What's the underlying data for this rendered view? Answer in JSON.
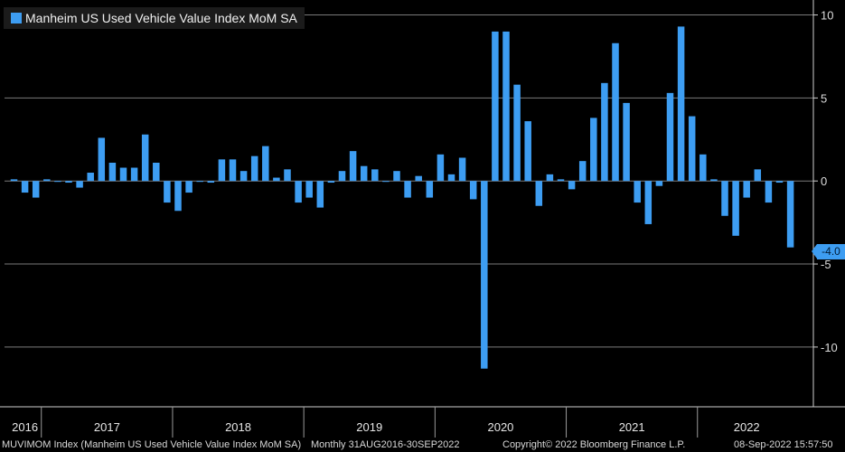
{
  "chart_data": {
    "type": "bar",
    "title": "Manheim US Used Vehicle Value Index MoM SA",
    "series": [
      {
        "name": "Manheim US Used Vehicle Value Index MoM SA",
        "color": "#3d9df2",
        "values": [
          0.1,
          -0.7,
          -1.0,
          0.1,
          0.0,
          -0.1,
          -0.4,
          0.5,
          2.6,
          1.1,
          0.8,
          0.8,
          2.8,
          1.1,
          -1.3,
          -1.8,
          -0.7,
          0.0,
          -0.1,
          1.3,
          1.3,
          0.6,
          1.5,
          2.1,
          0.2,
          0.7,
          -1.3,
          -1.0,
          -1.6,
          -0.1,
          0.6,
          1.8,
          0.9,
          0.7,
          0.0,
          0.6,
          -1.0,
          0.3,
          -1.0,
          1.6,
          0.4,
          1.4,
          -1.1,
          -11.3,
          9.0,
          9.0,
          5.8,
          3.6,
          -1.5,
          0.4,
          0.1,
          -0.5,
          1.2,
          3.8,
          5.9,
          8.3,
          4.7,
          -1.3,
          -2.6,
          -0.3,
          5.3,
          9.3,
          3.9,
          1.6,
          0.1,
          -2.1,
          -3.3,
          -1.0,
          0.7,
          -1.3,
          -0.1,
          -4.0
        ]
      }
    ],
    "x_start": "Oct 2016",
    "ylim": [
      -13.6,
      10.9
    ],
    "yticks": [
      10,
      5,
      0,
      -5,
      -10
    ],
    "ytick_labels": [
      "10",
      "5",
      "0",
      "-5",
      "-10"
    ],
    "year_labels": [
      {
        "label": "2016",
        "first_index": 0,
        "months": 3
      },
      {
        "label": "2017",
        "first_index": 3,
        "months": 12
      },
      {
        "label": "2018",
        "first_index": 15,
        "months": 12
      },
      {
        "label": "2019",
        "first_index": 27,
        "months": 12
      },
      {
        "label": "2020",
        "first_index": 39,
        "months": 12
      },
      {
        "label": "2021",
        "first_index": 51,
        "months": 12
      },
      {
        "label": "2022",
        "first_index": 63,
        "months": 9
      }
    ],
    "last_value_label": "-4.0",
    "legend": "top-left",
    "grid": true
  },
  "footer": {
    "security": "MUVIMOM Index (Manheim US Used Vehicle Value Index MoM SA)",
    "period": "Monthly 31AUG2016-30SEP2022",
    "copyright": "Copyright© 2022 Bloomberg Finance L.P.",
    "timestamp": "08-Sep-2022 15:57:50"
  }
}
